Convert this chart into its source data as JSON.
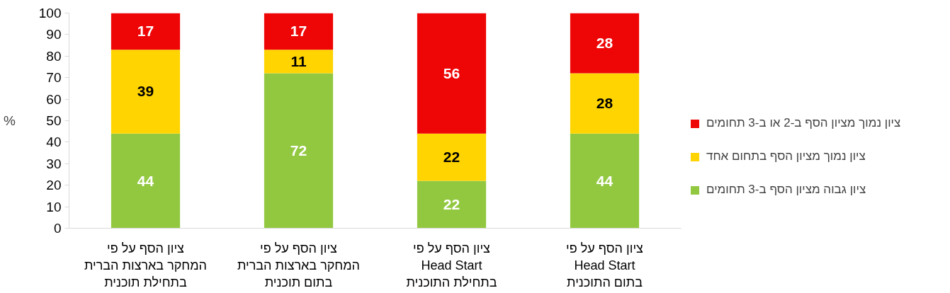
{
  "chart_data": {
    "type": "bar",
    "stacked": true,
    "data_labels": true,
    "legend": "right",
    "ylabel": "%",
    "ylim": [
      0,
      100
    ],
    "yticks": [
      0,
      10,
      20,
      30,
      40,
      50,
      60,
      70,
      80,
      90,
      100
    ],
    "categories": [
      "ציון הסף על פי\nהמחקר בארצות הברית\nבתחילת תוכנית",
      "ציון הסף על פי\nהמחקר בארצות הברית\nבתום תוכנית",
      "ציון הסף על פי\nHead Start\nבתחילת התוכנית",
      "ציון הסף על פי\nHead Start\nבתום התוכנית"
    ],
    "series": [
      {
        "name": "ציון גבוה מציון הסף ב-3 תחומים",
        "color": "#92c840",
        "values": [
          44,
          72,
          22,
          44
        ]
      },
      {
        "name": "ציון נמוך מציון הסף בתחום אחד",
        "color": "#ffd400",
        "values": [
          39,
          11,
          22,
          28
        ]
      },
      {
        "name": "ציון נמוך מציון הסף ב-2 או ב-3 תחומים",
        "color": "#ee0505",
        "values": [
          17,
          17,
          56,
          28
        ]
      }
    ]
  }
}
